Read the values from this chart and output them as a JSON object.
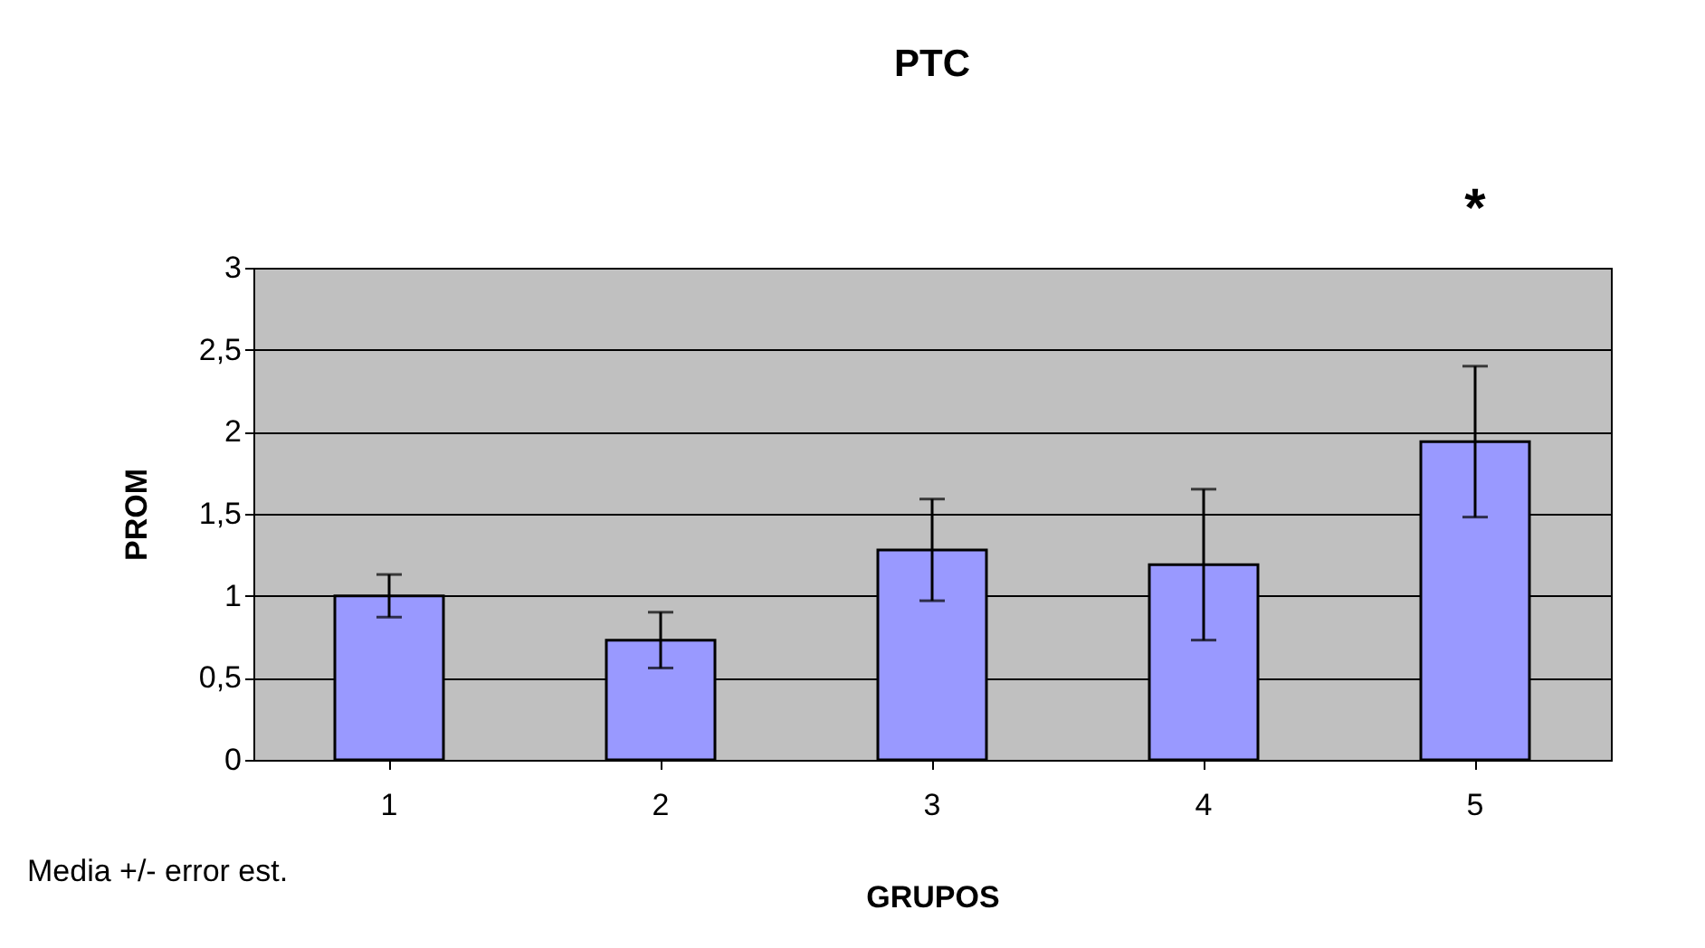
{
  "chart_data": {
    "type": "bar",
    "title": "PTC",
    "xlabel": "GRUPOS",
    "ylabel": "PROM",
    "categories": [
      "1",
      "2",
      "3",
      "4",
      "5"
    ],
    "values": [
      1.0,
      0.73,
      1.28,
      1.19,
      1.94
    ],
    "errors": [
      0.13,
      0.17,
      0.31,
      0.46,
      0.46
    ],
    "color": "#9999ff",
    "ylim": [
      0,
      3
    ],
    "yticks": [
      0,
      {
        "value": 0.5,
        "label": "0,5"
      },
      1,
      {
        "value": 1.5,
        "label": "1,5"
      },
      2,
      {
        "value": 2.5,
        "label": "2,5"
      },
      3
    ],
    "grid": "y",
    "annotations": [
      "*",
      "Media +/- error est."
    ]
  }
}
